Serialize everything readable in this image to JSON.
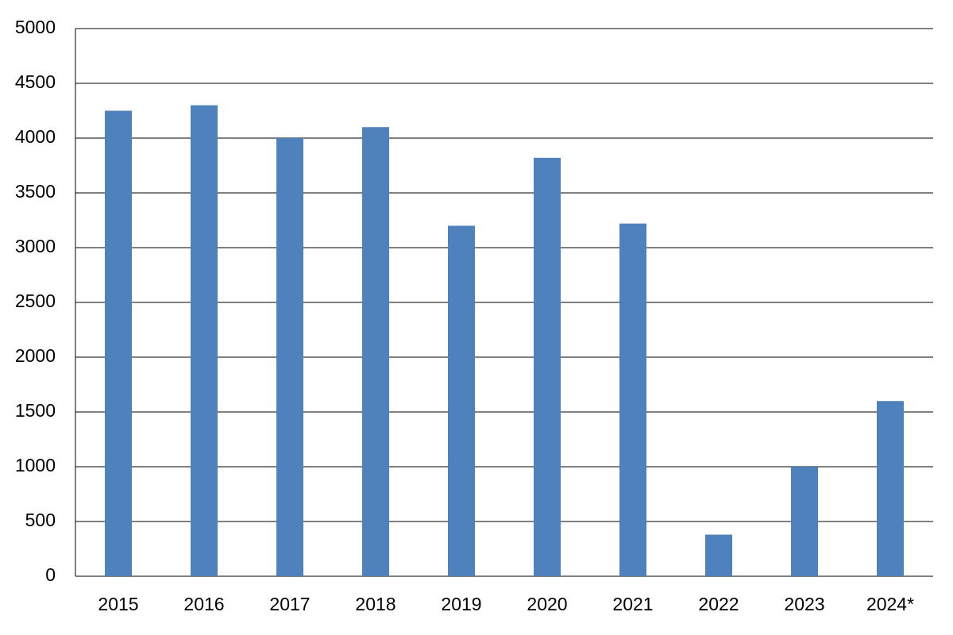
{
  "chart_data": {
    "type": "bar",
    "categories": [
      "2015",
      "2016",
      "2017",
      "2018",
      "2019",
      "2020",
      "2021",
      "2022",
      "2023",
      "2024*"
    ],
    "values": [
      4250,
      4300,
      4000,
      4100,
      3200,
      3820,
      3220,
      380,
      1000,
      1600
    ],
    "color": "#4f81bd",
    "ylim": [
      0,
      5000
    ],
    "yticks": [
      0,
      500,
      1000,
      1500,
      2000,
      2500,
      3000,
      3500,
      4000,
      4500,
      5000
    ],
    "grid": true
  }
}
